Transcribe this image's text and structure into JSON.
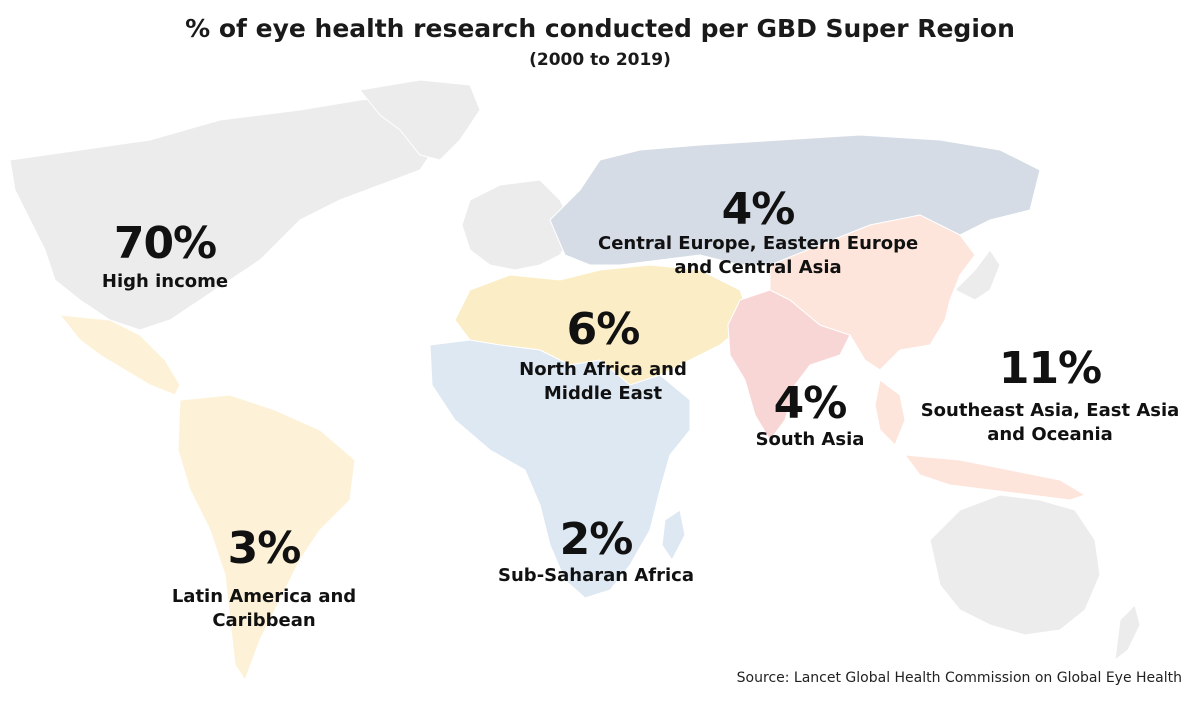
{
  "title": "% of eye health research conducted per GBD Super Region",
  "subtitle": "(2000 to 2019)",
  "source": "Source: Lancet Global Health Commission on Global Eye Health",
  "colors": {
    "high_income": "#ececec",
    "central_europe_eastern_europe_central_asia": "#d5dce6",
    "north_africa_middle_east": "#fbedc5",
    "sub_saharan_africa": "#dde8f3",
    "south_asia": "#f9d6d6",
    "southeast_east_asia_oceania": "#fde5dc",
    "latin_america_caribbean": "#fdf2d8"
  },
  "regions": {
    "high_income": {
      "percent": "70%",
      "label": "High income"
    },
    "cee_ca": {
      "percent": "4%",
      "label_line1": "Central Europe, Eastern Europe",
      "label_line2": "and Central Asia"
    },
    "nafme": {
      "percent": "6%",
      "label_line1": "North Africa and",
      "label_line2": "Middle East"
    },
    "south_asia": {
      "percent": "4%",
      "label": "South Asia"
    },
    "seao": {
      "percent": "11%",
      "label_line1": "Southeast Asia, East Asia",
      "label_line2": "and Oceania"
    },
    "ssa": {
      "percent": "2%",
      "label": "Sub-Saharan Africa"
    },
    "lac": {
      "percent": "3%",
      "label_line1": "Latin America and",
      "label_line2": "Caribbean"
    }
  }
}
